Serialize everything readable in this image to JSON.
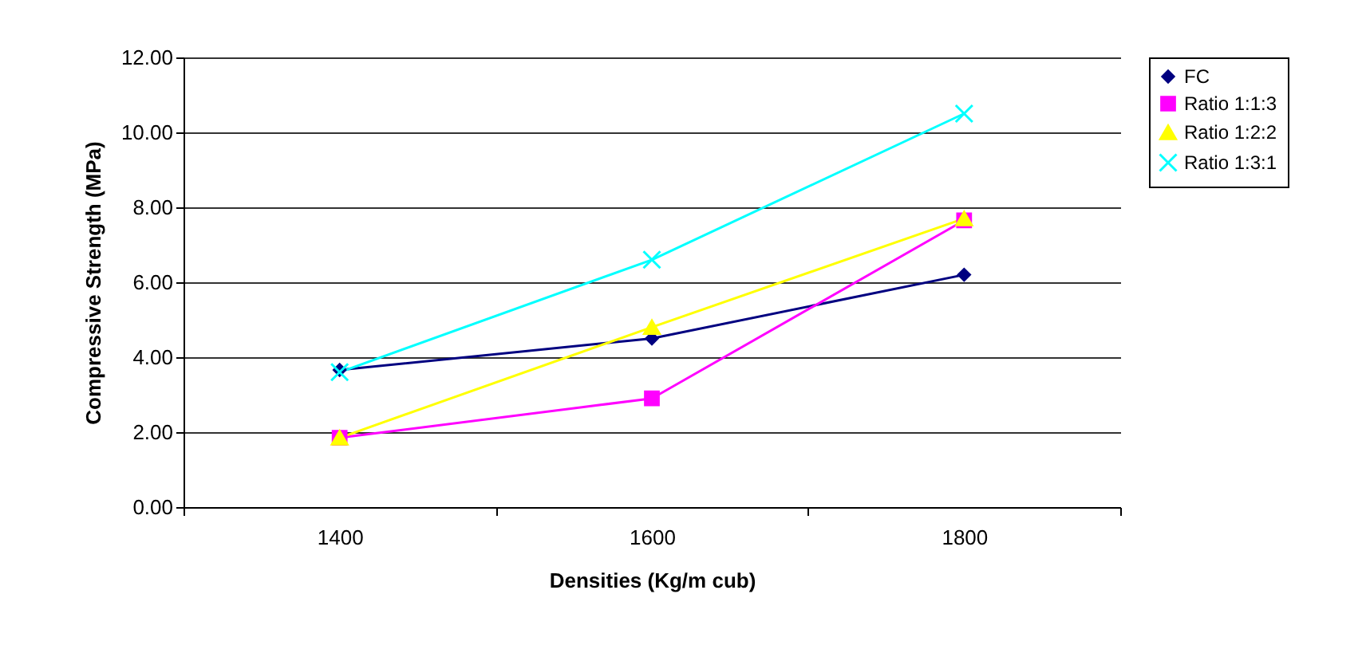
{
  "chart_data": {
    "type": "line",
    "xlabel": "Densities (Kg/m cub)",
    "ylabel": "Compressive Strength (MPa)",
    "categories": [
      "1400",
      "1600",
      "1800"
    ],
    "series": [
      {
        "name": "FC",
        "color": "#000080",
        "marker": "diamond",
        "values": [
          3.66,
          4.5,
          6.2
        ]
      },
      {
        "name": "Ratio 1:1:3",
        "color": "#ff00ff",
        "marker": "square",
        "values": [
          1.85,
          2.9,
          7.65
        ]
      },
      {
        "name": "Ratio 1:2:2",
        "color": "#ffff00",
        "marker": "triangle",
        "values": [
          1.85,
          4.8,
          7.7
        ]
      },
      {
        "name": "Ratio 1:3:1",
        "color": "#00ffff",
        "marker": "cross",
        "values": [
          3.6,
          6.6,
          10.5
        ]
      }
    ],
    "ylim": [
      0,
      12
    ],
    "yticks": [
      {
        "value": 0,
        "label": "0.00"
      },
      {
        "value": 2,
        "label": "2.00"
      },
      {
        "value": 4,
        "label": "4.00"
      },
      {
        "value": 6,
        "label": "6.00"
      },
      {
        "value": 8,
        "label": "8.00"
      },
      {
        "value": 10,
        "label": "10.00"
      },
      {
        "value": 12,
        "label": "12.00"
      }
    ],
    "grid": "y",
    "legend": "right",
    "line_style": "solid"
  }
}
